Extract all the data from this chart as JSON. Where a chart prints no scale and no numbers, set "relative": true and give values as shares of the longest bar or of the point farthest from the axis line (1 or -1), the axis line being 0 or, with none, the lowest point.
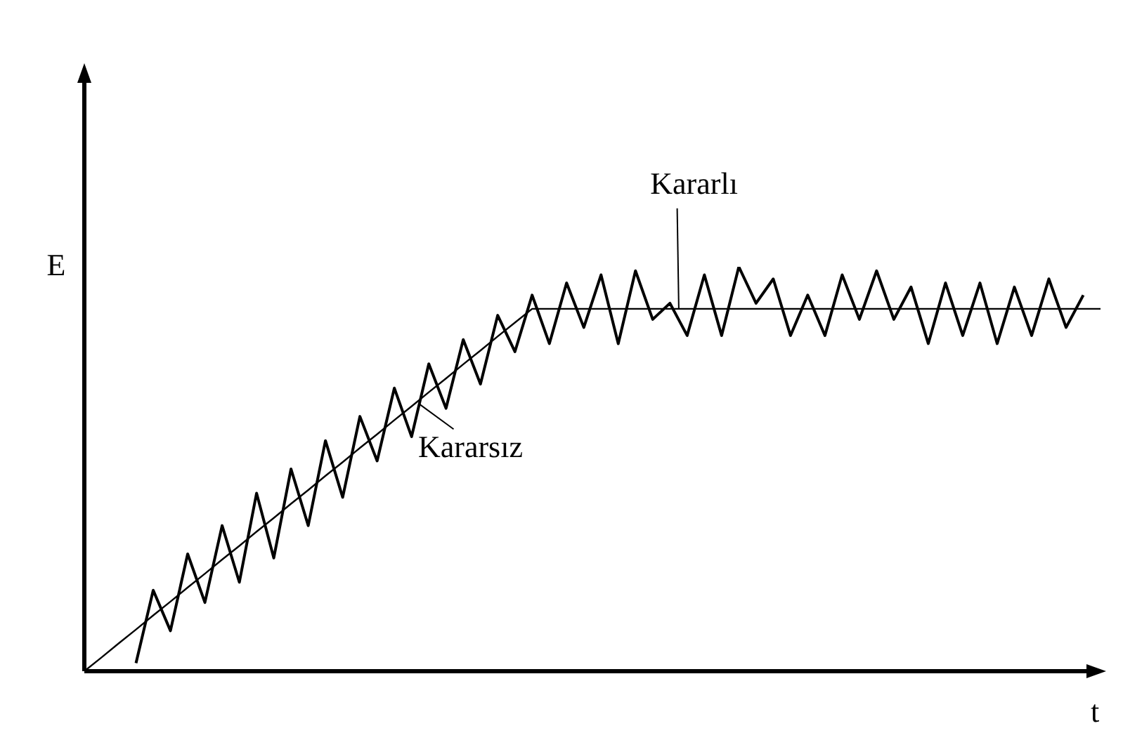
{
  "chart_data": {
    "type": "line",
    "relative": true,
    "xlabel": "t",
    "ylabel": "E",
    "legend": false,
    "marker": "none",
    "line_style": "solid",
    "annotations": [
      "Kararlı",
      "Kararsız"
    ],
    "categories": [
      null,
      null,
      null,
      null,
      null,
      null,
      null,
      null,
      null,
      null,
      null,
      null,
      null,
      null,
      null,
      null,
      null,
      null,
      null,
      null,
      null,
      null,
      null,
      null,
      null,
      null,
      null,
      null,
      null,
      null,
      null,
      null,
      null,
      null,
      null,
      null,
      null,
      null,
      null,
      null,
      null,
      null,
      null,
      null,
      null,
      null,
      null,
      null,
      null,
      null,
      null,
      null,
      null,
      null,
      null,
      null,
      null,
      null,
      null,
      null
    ],
    "series": [
      {
        "color": "#000000",
        "values": [
          0,
          0.034,
          0.069,
          0.103,
          0.138,
          0.172,
          0.207,
          0.241,
          0.276,
          0.31,
          0.345,
          0.379,
          0.414,
          0.448,
          0.483,
          0.517,
          0.552,
          0.586,
          0.621,
          0.655,
          0.69,
          0.724,
          0.759,
          0.793,
          0.828,
          0.862,
          0.896,
          0.896,
          0.896,
          0.896,
          0.896,
          0.896,
          0.896,
          0.896,
          0.896,
          0.896,
          0.896,
          0.896,
          0.896,
          0.896,
          0.896,
          0.896,
          0.896,
          0.896,
          0.896,
          0.896,
          0.896,
          0.896,
          0.896,
          0.896,
          0.896,
          0.896,
          0.896,
          0.896,
          0.896,
          0.896,
          0.896,
          0.896,
          0.896,
          0.896
        ]
      },
      {
        "color": "#000000",
        "values": [
          null,
          null,
          null,
          0.02,
          0.2,
          0.1,
          0.29,
          0.17,
          0.36,
          0.22,
          0.44,
          0.28,
          0.5,
          0.36,
          0.57,
          0.43,
          0.63,
          0.52,
          0.7,
          0.58,
          0.76,
          0.65,
          0.82,
          0.71,
          0.88,
          0.79,
          0.93,
          0.81,
          0.96,
          0.85,
          0.98,
          0.81,
          0.99,
          0.87,
          0.91,
          0.83,
          0.98,
          0.83,
          1,
          0.91,
          0.97,
          0.83,
          0.93,
          0.83,
          0.98,
          0.87,
          0.99,
          0.87,
          0.95,
          0.81,
          0.96,
          0.83,
          0.96,
          0.81,
          0.95,
          0.83,
          0.97,
          0.85,
          0.93,
          null
        ]
      }
    ]
  }
}
